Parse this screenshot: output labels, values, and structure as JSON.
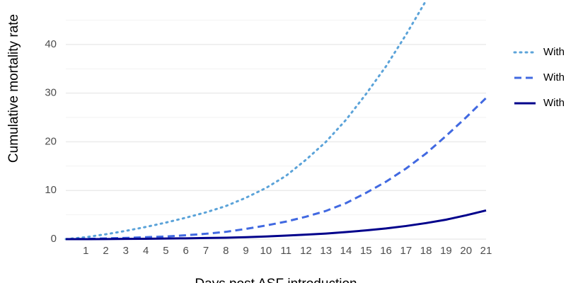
{
  "chart_data": {
    "type": "line",
    "x_label": "Days post ASF introduction",
    "y_label": "Cumulative mortality rate",
    "x": [
      0,
      1,
      2,
      3,
      4,
      5,
      6,
      7,
      8,
      9,
      10,
      11,
      12,
      13,
      14,
      15,
      16,
      17,
      18,
      19,
      20,
      21
    ],
    "series": [
      {
        "name": "With",
        "color": "#5ba3d9",
        "dash": "dotted",
        "values": [
          0,
          0.4,
          1,
          1.7,
          2.5,
          3.4,
          4.4,
          5.5,
          6.8,
          8.5,
          10.5,
          13,
          16.3,
          20,
          24.5,
          29.8,
          35.5,
          42,
          49,
          null,
          null,
          null
        ]
      },
      {
        "name": "With",
        "color": "#4169e1",
        "dash": "dashed",
        "values": [
          0,
          0.05,
          0.15,
          0.25,
          0.4,
          0.55,
          0.8,
          1.1,
          1.5,
          2.1,
          2.8,
          3.6,
          4.6,
          5.8,
          7.4,
          9.5,
          11.8,
          14.5,
          17.6,
          21.2,
          25,
          29
        ]
      },
      {
        "name": "With",
        "color": "#00008b",
        "dash": "solid",
        "values": [
          0,
          0,
          0.02,
          0.05,
          0.08,
          0.12,
          0.17,
          0.23,
          0.3,
          0.4,
          0.55,
          0.72,
          0.92,
          1.15,
          1.45,
          1.8,
          2.2,
          2.7,
          3.3,
          4,
          4.9,
          5.9
        ]
      }
    ],
    "xlim": [
      0,
      21
    ],
    "xticks": [
      1,
      2,
      3,
      4,
      5,
      6,
      7,
      8,
      9,
      10,
      11,
      12,
      13,
      14,
      15,
      16,
      17,
      18,
      19,
      20,
      21
    ],
    "ylim": [
      0,
      49
    ],
    "yticks": [
      0,
      10,
      20,
      30,
      40
    ],
    "y_minor_grid": [
      5,
      15,
      25,
      35,
      45
    ],
    "grid": true,
    "legend": "right"
  }
}
